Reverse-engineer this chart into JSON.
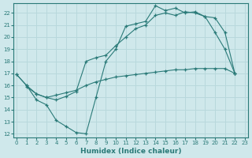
{
  "xlabel": "Humidex (Indice chaleur)",
  "bg_color": "#cfe8eb",
  "grid_color": "#b8d8dc",
  "line_color": "#2a7a78",
  "line1_x": [
    0,
    1,
    2,
    3,
    4,
    5,
    6,
    7,
    8,
    9,
    10,
    11,
    12,
    13,
    14,
    15,
    16,
    17,
    18,
    19,
    20,
    21,
    22
  ],
  "line1_y": [
    16.9,
    16.0,
    14.8,
    14.4,
    13.1,
    12.6,
    12.1,
    12.0,
    15.0,
    18.0,
    19.0,
    20.9,
    21.1,
    21.3,
    22.6,
    22.2,
    22.4,
    22.0,
    22.1,
    21.7,
    20.4,
    19.0,
    17.0
  ],
  "line2_x": [
    0,
    1,
    2,
    3,
    4,
    5,
    6,
    7,
    8,
    9,
    10,
    11,
    12,
    13,
    14,
    15,
    16,
    17,
    18,
    19,
    20,
    21,
    22
  ],
  "line2_y": [
    16.9,
    16.0,
    15.3,
    15.0,
    14.8,
    15.1,
    15.5,
    18.0,
    18.3,
    18.5,
    19.3,
    20.0,
    20.7,
    21.0,
    21.8,
    22.0,
    21.8,
    22.1,
    22.0,
    21.7,
    21.6,
    20.4,
    17.0
  ],
  "line3_x": [
    1,
    2,
    3,
    4,
    5,
    6,
    7,
    8,
    9,
    10,
    11,
    12,
    13,
    14,
    15,
    16,
    17,
    18,
    19,
    20,
    21,
    22
  ],
  "line3_y": [
    15.9,
    15.3,
    15.0,
    15.2,
    15.4,
    15.6,
    16.0,
    16.3,
    16.5,
    16.7,
    16.8,
    16.9,
    17.0,
    17.1,
    17.2,
    17.3,
    17.3,
    17.4,
    17.4,
    17.4,
    17.4,
    17.0
  ],
  "xlim": [
    -0.3,
    23.3
  ],
  "ylim": [
    11.7,
    22.8
  ],
  "yticks": [
    12,
    13,
    14,
    15,
    16,
    17,
    18,
    19,
    20,
    21,
    22
  ],
  "xticks": [
    0,
    1,
    2,
    3,
    4,
    5,
    6,
    7,
    8,
    9,
    10,
    11,
    12,
    13,
    14,
    15,
    16,
    17,
    18,
    19,
    20,
    21,
    22,
    23
  ]
}
